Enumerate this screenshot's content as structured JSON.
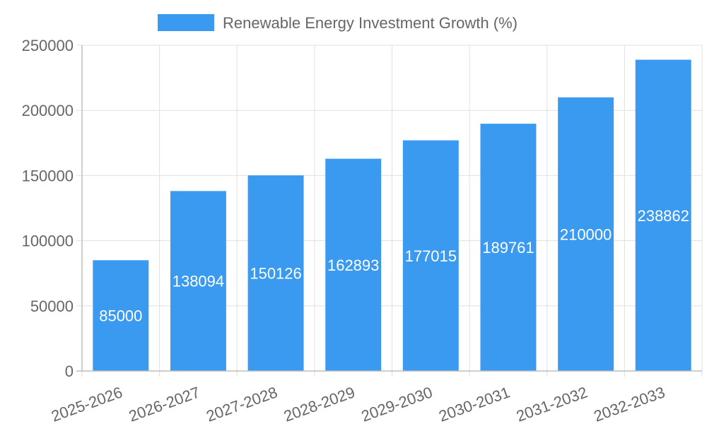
{
  "colors": {
    "bar": "#3a9af0",
    "text": "#666666",
    "grid": "#e0e0e0",
    "axis": "#bdbdbd",
    "bar_label": "#ffffff"
  },
  "chart_data": {
    "type": "bar",
    "title": "",
    "xlabel": "",
    "ylabel": "",
    "categories": [
      "2025-2026",
      "2026-2027",
      "2027-2028",
      "2028-2029",
      "2029-2030",
      "2030-2031",
      "2031-2032",
      "2032-2033"
    ],
    "series": [
      {
        "name": "Renewable Energy Investment Growth (%)",
        "values": [
          85000,
          138094,
          150126,
          162893,
          177015,
          189761,
          210000,
          238862
        ]
      }
    ],
    "ylim": [
      0,
      250000
    ],
    "yticks": [
      0,
      50000,
      100000,
      150000,
      200000,
      250000
    ],
    "grid": true,
    "legend_position": "top-center",
    "data_labels": true
  }
}
